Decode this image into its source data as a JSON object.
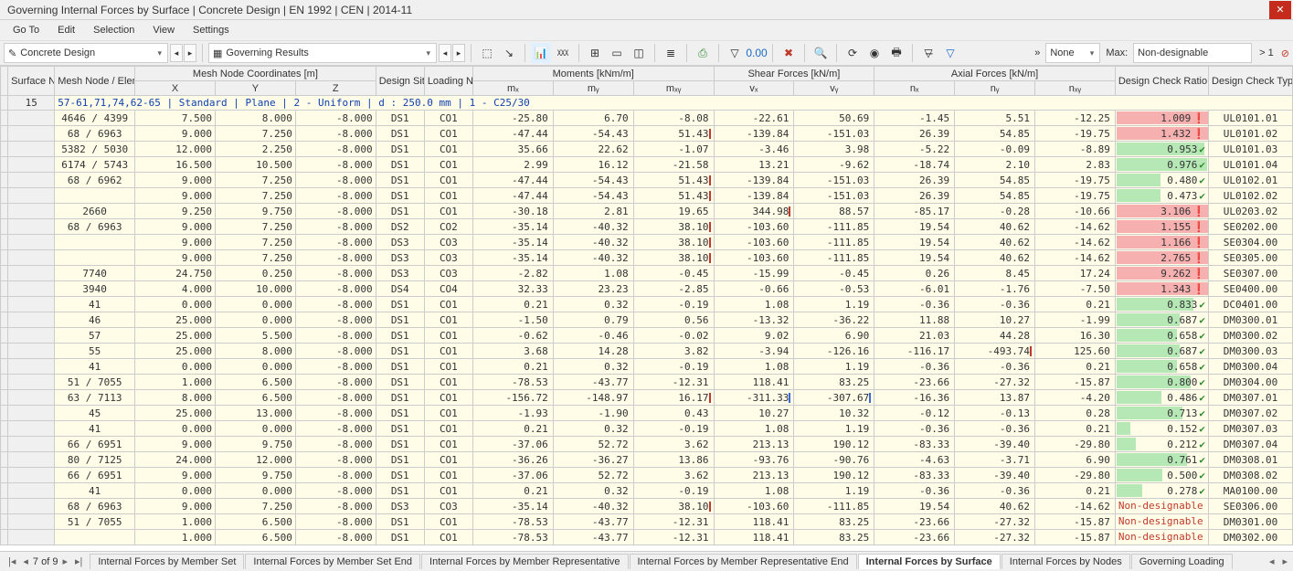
{
  "window": {
    "title": "Governing Internal Forces by Surface | Concrete Design | EN 1992 | CEN | 2014-11"
  },
  "menu": [
    "Go To",
    "Edit",
    "Selection",
    "View",
    "Settings"
  ],
  "toolbar": {
    "combo1": "Concrete Design",
    "combo2": "Governing Results",
    "filterNone": "None",
    "maxLabel": "Max:",
    "maxValue": "Non-designable",
    "warnCount": "> 1"
  },
  "headers": {
    "surfaceNo": "Surface No.",
    "meshNode": "Mesh Node / Element No.",
    "coords": "Mesh Node Coordinates [m]",
    "x": "X",
    "y": "Y",
    "z": "Z",
    "designSituation": "Design Situation",
    "loadingNo": "Loading No.",
    "moments": "Moments [kNm/m]",
    "mx": "mₓ",
    "my": "mᵧ",
    "mxy": "mₓᵧ",
    "shear": "Shear Forces [kN/m]",
    "vx": "vₓ",
    "vy": "vᵧ",
    "axial": "Axial Forces [kN/m]",
    "nx": "nₓ",
    "ny": "nᵧ",
    "nxy": "nₓᵧ",
    "ratio": "Design Check Ratio η [-]",
    "dctype": "Design Check Type"
  },
  "surfaceNo": "15",
  "sectionLabel": "57-61,71,74,62-65 | Standard | Plane | 2 - Uniform | d : 250.0 mm | 1 - C25/30",
  "ndLabel": "Non-designable",
  "rows": [
    {
      "mesh": "4646 / 4399",
      "x": "7.500",
      "y": "8.000",
      "z": "-8.000",
      "ds": "DS1",
      "co": "CO1",
      "mx": "-25.80",
      "my": "6.70",
      "mxy": "-8.08",
      "mxyMark": "",
      "vx": "-22.61",
      "vy": "50.69",
      "nx": "-1.45",
      "ny": "5.51",
      "nxy": "-12.25",
      "ratio": "1.009",
      "ok": false,
      "dc": "UL0101.01"
    },
    {
      "mesh": "68 / 6963",
      "x": "9.000",
      "y": "7.250",
      "z": "-8.000",
      "ds": "DS1",
      "co": "CO1",
      "mx": "-47.44",
      "my": "-54.43",
      "mxy": "51.43",
      "mxyMark": "red",
      "vx": "-139.84",
      "vy": "-151.03",
      "nx": "26.39",
      "ny": "54.85",
      "nxy": "-19.75",
      "ratio": "1.432",
      "ok": false,
      "dc": "UL0101.02"
    },
    {
      "mesh": "5382 / 5030",
      "x": "12.000",
      "y": "2.250",
      "z": "-8.000",
      "ds": "DS1",
      "co": "CO1",
      "mx": "35.66",
      "my": "22.62",
      "mxy": "-1.07",
      "mxyMark": "",
      "vx": "-3.46",
      "vy": "3.98",
      "nx": "-5.22",
      "ny": "-0.09",
      "nxy": "-8.89",
      "ratio": "0.953",
      "ok": true,
      "dc": "UL0101.03"
    },
    {
      "mesh": "6174 / 5743",
      "x": "16.500",
      "y": "10.500",
      "z": "-8.000",
      "ds": "DS1",
      "co": "CO1",
      "mx": "2.99",
      "my": "16.12",
      "mxy": "-21.58",
      "mxyMark": "",
      "vx": "13.21",
      "vy": "-9.62",
      "nx": "-18.74",
      "ny": "2.10",
      "nxy": "2.83",
      "ratio": "0.976",
      "ok": true,
      "dc": "UL0101.04"
    },
    {
      "mesh": "68 / 6962",
      "x": "9.000",
      "y": "7.250",
      "z": "-8.000",
      "ds": "DS1",
      "co": "CO1",
      "mx": "-47.44",
      "my": "-54.43",
      "mxy": "51.43",
      "mxyMark": "red",
      "vx": "-139.84",
      "vy": "-151.03",
      "nx": "26.39",
      "ny": "54.85",
      "nxy": "-19.75",
      "ratio": "0.480",
      "ok": true,
      "dc": "UL0102.01"
    },
    {
      "mesh": "",
      "x": "9.000",
      "y": "7.250",
      "z": "-8.000",
      "ds": "DS1",
      "co": "CO1",
      "mx": "-47.44",
      "my": "-54.43",
      "mxy": "51.43",
      "mxyMark": "red",
      "vx": "-139.84",
      "vy": "-151.03",
      "nx": "26.39",
      "ny": "54.85",
      "nxy": "-19.75",
      "ratio": "0.473",
      "ok": true,
      "dc": "UL0102.02"
    },
    {
      "mesh": "2660",
      "x": "9.250",
      "y": "9.750",
      "z": "-8.000",
      "ds": "DS1",
      "co": "CO1",
      "mx": "-30.18",
      "my": "2.81",
      "mxy": "19.65",
      "mxyMark": "",
      "vx": "344.98",
      "vxMark": "red",
      "vy": "88.57",
      "nx": "-85.17",
      "ny": "-0.28",
      "nxy": "-10.66",
      "ratio": "3.106",
      "ok": false,
      "dc": "UL0203.02"
    },
    {
      "mesh": "68 / 6963",
      "x": "9.000",
      "y": "7.250",
      "z": "-8.000",
      "ds": "DS2",
      "co": "CO2",
      "mx": "-35.14",
      "my": "-40.32",
      "mxy": "38.10",
      "mxyMark": "red",
      "vx": "-103.60",
      "vy": "-111.85",
      "nx": "19.54",
      "ny": "40.62",
      "nxy": "-14.62",
      "ratio": "1.155",
      "ok": false,
      "dc": "SE0202.00"
    },
    {
      "mesh": "",
      "x": "9.000",
      "y": "7.250",
      "z": "-8.000",
      "ds": "DS3",
      "co": "CO3",
      "mx": "-35.14",
      "my": "-40.32",
      "mxy": "38.10",
      "mxyMark": "red",
      "vx": "-103.60",
      "vy": "-111.85",
      "nx": "19.54",
      "ny": "40.62",
      "nxy": "-14.62",
      "ratio": "1.166",
      "ok": false,
      "dc": "SE0304.00"
    },
    {
      "mesh": "",
      "x": "9.000",
      "y": "7.250",
      "z": "-8.000",
      "ds": "DS3",
      "co": "CO3",
      "mx": "-35.14",
      "my": "-40.32",
      "mxy": "38.10",
      "mxyMark": "red",
      "vx": "-103.60",
      "vy": "-111.85",
      "nx": "19.54",
      "ny": "40.62",
      "nxy": "-14.62",
      "ratio": "2.765",
      "ok": false,
      "dc": "SE0305.00"
    },
    {
      "mesh": "7740",
      "x": "24.750",
      "y": "0.250",
      "z": "-8.000",
      "ds": "DS3",
      "co": "CO3",
      "mx": "-2.82",
      "my": "1.08",
      "mxy": "-0.45",
      "mxyMark": "",
      "vx": "-15.99",
      "vy": "-0.45",
      "nx": "0.26",
      "ny": "8.45",
      "nxy": "17.24",
      "ratio": "9.262",
      "ok": false,
      "dc": "SE0307.00"
    },
    {
      "mesh": "3940",
      "x": "4.000",
      "y": "10.000",
      "z": "-8.000",
      "ds": "DS4",
      "co": "CO4",
      "mx": "32.33",
      "my": "23.23",
      "mxy": "-2.85",
      "mxyMark": "",
      "vx": "-0.66",
      "vy": "-0.53",
      "nx": "-6.01",
      "ny": "-1.76",
      "nxy": "-7.50",
      "ratio": "1.343",
      "ok": false,
      "dc": "SE0400.00"
    },
    {
      "mesh": "41",
      "x": "0.000",
      "y": "0.000",
      "z": "-8.000",
      "ds": "DS1",
      "co": "CO1",
      "mx": "0.21",
      "my": "0.32",
      "mxy": "-0.19",
      "mxyMark": "",
      "vx": "1.08",
      "vy": "1.19",
      "nx": "-0.36",
      "ny": "-0.36",
      "nxy": "0.21",
      "ratio": "0.833",
      "ok": true,
      "dc": "DC0401.00"
    },
    {
      "mesh": "46",
      "x": "25.000",
      "y": "0.000",
      "z": "-8.000",
      "ds": "DS1",
      "co": "CO1",
      "mx": "-1.50",
      "my": "0.79",
      "mxy": "0.56",
      "mxyMark": "",
      "vx": "-13.32",
      "vy": "-36.22",
      "nx": "11.88",
      "ny": "10.27",
      "nxy": "-1.99",
      "ratio": "0.687",
      "ok": true,
      "dc": "DM0300.01"
    },
    {
      "mesh": "57",
      "x": "25.000",
      "y": "5.500",
      "z": "-8.000",
      "ds": "DS1",
      "co": "CO1",
      "mx": "-0.62",
      "my": "-0.46",
      "mxy": "-0.02",
      "mxyMark": "",
      "vx": "9.02",
      "vy": "6.90",
      "nx": "21.03",
      "ny": "44.28",
      "nxy": "16.30",
      "ratio": "0.658",
      "ok": true,
      "dc": "DM0300.02"
    },
    {
      "mesh": "55",
      "x": "25.000",
      "y": "8.000",
      "z": "-8.000",
      "ds": "DS1",
      "co": "CO1",
      "mx": "3.68",
      "my": "14.28",
      "mxy": "3.82",
      "mxyMark": "",
      "vx": "-3.94",
      "vy": "-126.16",
      "nx": "-116.17",
      "ny": "-493.74",
      "nyMark": "red",
      "nxy": "125.60",
      "ratio": "0.687",
      "ok": true,
      "dc": "DM0300.03"
    },
    {
      "mesh": "41",
      "x": "0.000",
      "y": "0.000",
      "z": "-8.000",
      "ds": "DS1",
      "co": "CO1",
      "mx": "0.21",
      "my": "0.32",
      "mxy": "-0.19",
      "mxyMark": "",
      "vx": "1.08",
      "vy": "1.19",
      "nx": "-0.36",
      "ny": "-0.36",
      "nxy": "0.21",
      "ratio": "0.658",
      "ok": true,
      "dc": "DM0300.04"
    },
    {
      "mesh": "51 / 7055",
      "x": "1.000",
      "y": "6.500",
      "z": "-8.000",
      "ds": "DS1",
      "co": "CO1",
      "mx": "-78.53",
      "my": "-43.77",
      "mxy": "-12.31",
      "mxyMark": "",
      "vx": "118.41",
      "vy": "83.25",
      "nx": "-23.66",
      "ny": "-27.32",
      "nxy": "-15.87",
      "ratio": "0.800",
      "ok": true,
      "dc": "DM0304.00"
    },
    {
      "mesh": "63 / 7113",
      "x": "8.000",
      "y": "6.500",
      "z": "-8.000",
      "ds": "DS1",
      "co": "CO1",
      "mx": "-156.72",
      "my": "-148.97",
      "mxy": "16.17",
      "mxyMark": "red",
      "vx": "-311.33",
      "vxMark": "blue",
      "vy": "-307.67",
      "vyMark": "blue",
      "nx": "-16.36",
      "ny": "13.87",
      "nxy": "-4.20",
      "ratio": "0.486",
      "ok": true,
      "dc": "DM0307.01"
    },
    {
      "mesh": "45",
      "x": "25.000",
      "y": "13.000",
      "z": "-8.000",
      "ds": "DS1",
      "co": "CO1",
      "mx": "-1.93",
      "my": "-1.90",
      "mxy": "0.43",
      "mxyMark": "",
      "vx": "10.27",
      "vy": "10.32",
      "nx": "-0.12",
      "ny": "-0.13",
      "nxy": "0.28",
      "ratio": "0.713",
      "ok": true,
      "dc": "DM0307.02"
    },
    {
      "mesh": "41",
      "x": "0.000",
      "y": "0.000",
      "z": "-8.000",
      "ds": "DS1",
      "co": "CO1",
      "mx": "0.21",
      "my": "0.32",
      "mxy": "-0.19",
      "mxyMark": "",
      "vx": "1.08",
      "vy": "1.19",
      "nx": "-0.36",
      "ny": "-0.36",
      "nxy": "0.21",
      "ratio": "0.152",
      "ok": true,
      "dc": "DM0307.03"
    },
    {
      "mesh": "66 / 6951",
      "x": "9.000",
      "y": "9.750",
      "z": "-8.000",
      "ds": "DS1",
      "co": "CO1",
      "mx": "-37.06",
      "my": "52.72",
      "mxy": "3.62",
      "mxyMark": "",
      "vx": "213.13",
      "vy": "190.12",
      "nx": "-83.33",
      "ny": "-39.40",
      "nxy": "-29.80",
      "ratio": "0.212",
      "ok": true,
      "dc": "DM0307.04"
    },
    {
      "mesh": "80 / 7125",
      "x": "24.000",
      "y": "12.000",
      "z": "-8.000",
      "ds": "DS1",
      "co": "CO1",
      "mx": "-36.26",
      "my": "-36.27",
      "mxy": "13.86",
      "mxyMark": "",
      "vx": "-93.76",
      "vy": "-90.76",
      "nx": "-4.63",
      "ny": "-3.71",
      "nxy": "6.90",
      "ratio": "0.761",
      "ok": true,
      "dc": "DM0308.01"
    },
    {
      "mesh": "66 / 6951",
      "x": "9.000",
      "y": "9.750",
      "z": "-8.000",
      "ds": "DS1",
      "co": "CO1",
      "mx": "-37.06",
      "my": "52.72",
      "mxy": "3.62",
      "mxyMark": "",
      "vx": "213.13",
      "vy": "190.12",
      "nx": "-83.33",
      "ny": "-39.40",
      "nxy": "-29.80",
      "ratio": "0.500",
      "ok": true,
      "dc": "DM0308.02"
    },
    {
      "mesh": "41",
      "x": "0.000",
      "y": "0.000",
      "z": "-8.000",
      "ds": "DS1",
      "co": "CO1",
      "mx": "0.21",
      "my": "0.32",
      "mxy": "-0.19",
      "mxyMark": "",
      "vx": "1.08",
      "vy": "1.19",
      "nx": "-0.36",
      "ny": "-0.36",
      "nxy": "0.21",
      "ratio": "0.278",
      "ok": true,
      "dc": "MA0100.00"
    },
    {
      "mesh": "68 / 6963",
      "x": "9.000",
      "y": "7.250",
      "z": "-8.000",
      "ds": "DS3",
      "co": "CO3",
      "mx": "-35.14",
      "my": "-40.32",
      "mxy": "38.10",
      "mxyMark": "red",
      "vx": "-103.60",
      "vy": "-111.85",
      "nx": "19.54",
      "ny": "40.62",
      "nxy": "-14.62",
      "nd": true,
      "dc": "SE0306.00"
    },
    {
      "mesh": "51 / 7055",
      "x": "1.000",
      "y": "6.500",
      "z": "-8.000",
      "ds": "DS1",
      "co": "CO1",
      "mx": "-78.53",
      "my": "-43.77",
      "mxy": "-12.31",
      "mxyMark": "",
      "vx": "118.41",
      "vy": "83.25",
      "nx": "-23.66",
      "ny": "-27.32",
      "nxy": "-15.87",
      "nd": true,
      "dc": "DM0301.00"
    },
    {
      "mesh": "",
      "x": "1.000",
      "y": "6.500",
      "z": "-8.000",
      "ds": "DS1",
      "co": "CO1",
      "mx": "-78.53",
      "my": "-43.77",
      "mxy": "-12.31",
      "mxyMark": "",
      "vx": "118.41",
      "vy": "83.25",
      "nx": "-23.66",
      "ny": "-27.32",
      "nxy": "-15.87",
      "nd": true,
      "dc": "DM0302.00"
    }
  ],
  "footer": {
    "page": "7 of 9",
    "tabs": [
      "Internal Forces by Member Set",
      "Internal Forces by Member Set End",
      "Internal Forces by Member Representative",
      "Internal Forces by Member Representative End",
      "Internal Forces by Surface",
      "Internal Forces by Nodes",
      "Governing Loading"
    ],
    "activeTab": 4
  },
  "colors": {
    "ratioGreen": "#b6e8b6",
    "ratioRed": "#f6b0b0",
    "okIcon": "#2e8b2e",
    "warnIcon": "#c0392b"
  }
}
